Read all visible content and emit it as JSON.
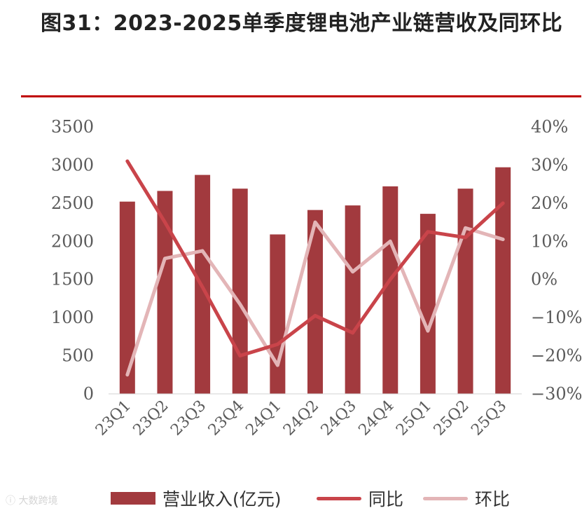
{
  "title": "图31：2023-2025单季度锂电池产业链营收及同环比",
  "watermark": "大数跨境",
  "colors": {
    "bar": "#a23a3e",
    "yoy": "#c9444a",
    "qoq": "#e3b5b7",
    "rule": "#c00000"
  },
  "chart_data": {
    "type": "bar",
    "title": "2023-2025单季度锂电池产业链营收及同环比",
    "categories": [
      "23Q1",
      "23Q2",
      "23Q3",
      "23Q4",
      "24Q1",
      "24Q2",
      "24Q3",
      "24Q4",
      "25Q1",
      "25Q2",
      "25Q3"
    ],
    "left_axis": {
      "ylim": [
        0,
        3500
      ],
      "ticks": [
        0,
        500,
        1000,
        1500,
        2000,
        2500,
        3000,
        3500
      ],
      "tick_labels": [
        "0",
        "500",
        "1000",
        "1500",
        "2000",
        "2500",
        "3000",
        "3500"
      ]
    },
    "right_axis": {
      "ylim": [
        -30,
        40
      ],
      "ticks": [
        -30,
        -20,
        -10,
        0,
        10,
        20,
        30,
        40
      ],
      "tick_labels": [
        "-30%",
        "-20%",
        "-10%",
        "0%",
        "10%",
        "20%",
        "30%",
        "40%"
      ]
    },
    "series": [
      {
        "name": "营业收入(亿元)",
        "type": "bar",
        "axis": "left",
        "values": [
          2520,
          2660,
          2870,
          2690,
          2090,
          2410,
          2470,
          2720,
          2360,
          2690,
          2970
        ]
      },
      {
        "name": "同比",
        "type": "line",
        "axis": "right",
        "values": [
          31,
          15,
          -2,
          -20,
          -17,
          -9.5,
          -14,
          0,
          12.5,
          11,
          20
        ]
      },
      {
        "name": "环比",
        "type": "line",
        "axis": "right",
        "values": [
          -25,
          5.5,
          7.5,
          -6.5,
          -22.5,
          15,
          2,
          10,
          -13.5,
          13.5,
          10.5
        ]
      }
    ],
    "legend_position": "bottom"
  }
}
